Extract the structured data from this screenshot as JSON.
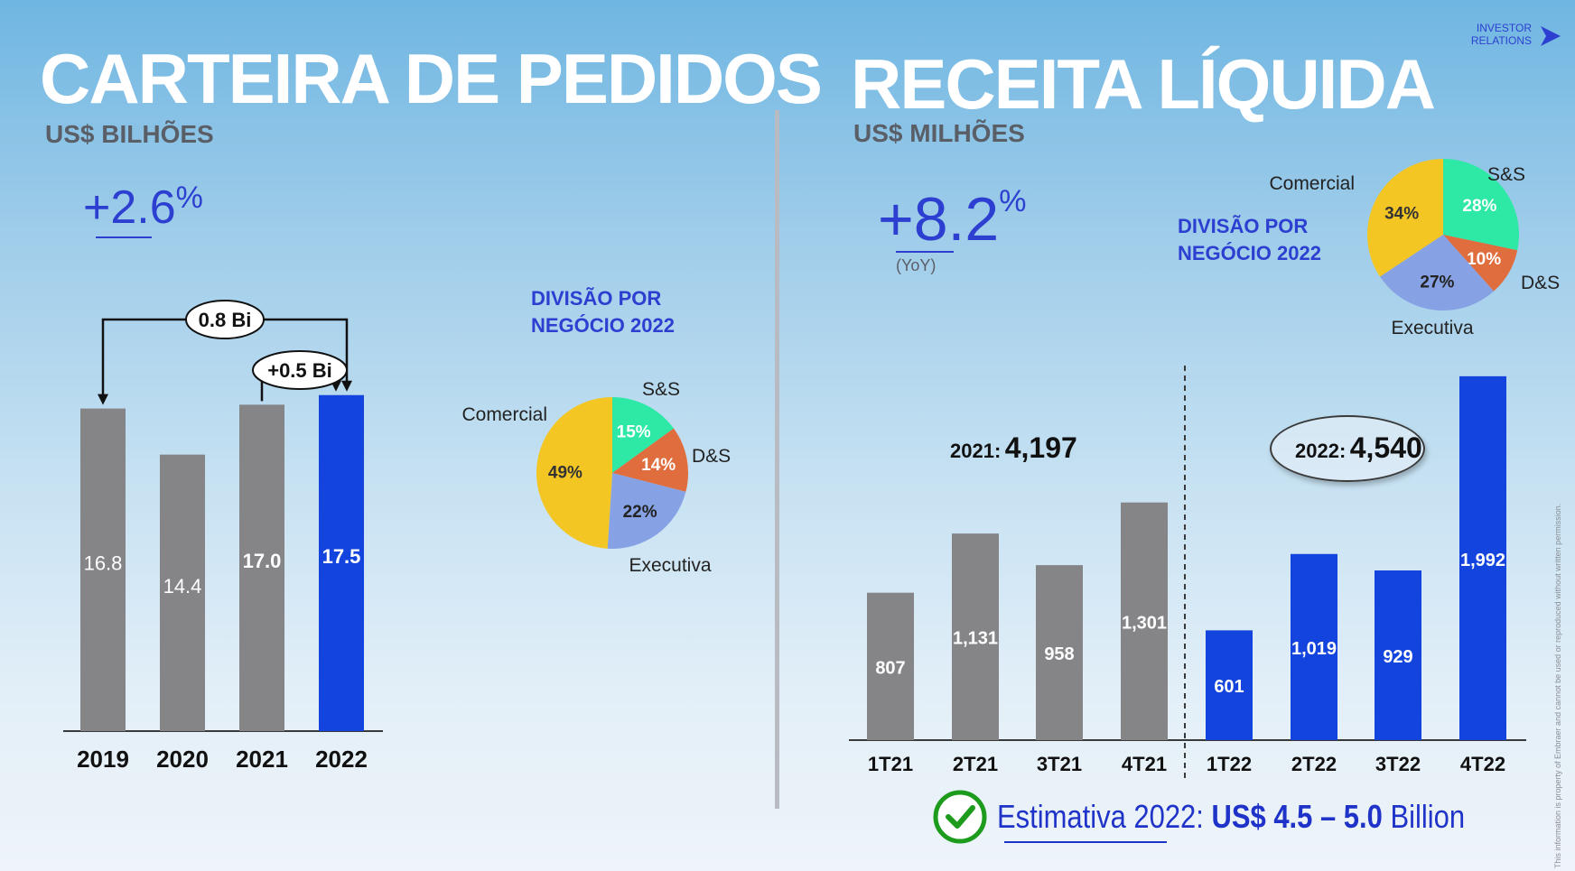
{
  "header": {
    "ir_logo_line1": "INVESTOR",
    "ir_logo_line2": "RELATIONS",
    "ir_logo_icon": "arrow-right-icon"
  },
  "backlog": {
    "title": "CARTEIRA DE PEDIDOS",
    "unit": "US$ BILHÕES",
    "growth_number": "+2.6",
    "growth_percent": "%",
    "callout_total": "0.8 Bi",
    "callout_yoy": "+0.5 Bi",
    "division_title_line1": "DIVISÃO POR",
    "division_title_line2": "NEGÓCIO 2022"
  },
  "revenue": {
    "title": "RECEITA LÍQUIDA",
    "unit": "US$ MILHÕES",
    "growth_number": "+8.2",
    "growth_percent": "%",
    "growth_caption": "(YoY)",
    "division_title_line1": "DIVISÃO POR",
    "division_title_line2": "NEGÓCIO 2022",
    "total_2021_label": "2021:",
    "total_2021_value": "4,197",
    "total_2022_label": "2022:",
    "total_2022_value": "4,540",
    "estimate_prefix": "Estimativa 2022:",
    "estimate_range": "US$ 4.5 – 5.0",
    "estimate_suffix": "Billion",
    "estimate_icon": "check-circle-icon"
  },
  "side_note": "This information is property of Embraer and cannot be used or reproduced without written permission.",
  "colors": {
    "gray_bar": "#858588",
    "blue_bar": "#1344dd",
    "comercial": "#f4c623",
    "ss": "#2ee8a6",
    "ds": "#e06d3e",
    "executiva": "#86a2e4",
    "accent": "#2c3fd0",
    "check": "#1d9b1d"
  },
  "chart_data": [
    {
      "type": "bar",
      "categories": [
        "2019",
        "2020",
        "2021",
        "2022"
      ],
      "values": [
        16.8,
        14.4,
        17.0,
        17.5
      ],
      "value_labels": [
        "16.8",
        "14.4",
        "17.0",
        "17.5"
      ],
      "highlight": [
        false,
        false,
        false,
        true
      ],
      "title": "",
      "xlabel": "",
      "ylabel": "",
      "ylim": [
        0,
        22
      ],
      "grid": false
    },
    {
      "type": "pie",
      "labels": [
        "S&S",
        "D&S",
        "Executiva",
        "Comercial"
      ],
      "values": [
        15,
        14,
        22,
        49
      ],
      "value_labels": [
        "15%",
        "14%",
        "22%",
        "49%"
      ]
    },
    {
      "type": "bar",
      "categories": [
        "1T21",
        "2T21",
        "3T21",
        "4T21",
        "1T22",
        "2T22",
        "3T22",
        "4T22"
      ],
      "values": [
        807,
        1131,
        958,
        1301,
        601,
        1019,
        929,
        1992
      ],
      "value_labels": [
        "807",
        "1,131",
        "958",
        "1,301",
        "601",
        "1,019",
        "929",
        "1,992"
      ],
      "highlight": [
        false,
        false,
        false,
        false,
        true,
        true,
        true,
        true
      ],
      "title": "",
      "xlabel": "",
      "ylabel": "",
      "ylim": [
        0,
        2100
      ],
      "grid": false
    },
    {
      "type": "pie",
      "labels": [
        "S&S",
        "D&S",
        "Executiva",
        "Comercial"
      ],
      "values": [
        28,
        10,
        27,
        34
      ],
      "value_labels": [
        "28%",
        "10%",
        "27%",
        "34%"
      ]
    }
  ]
}
